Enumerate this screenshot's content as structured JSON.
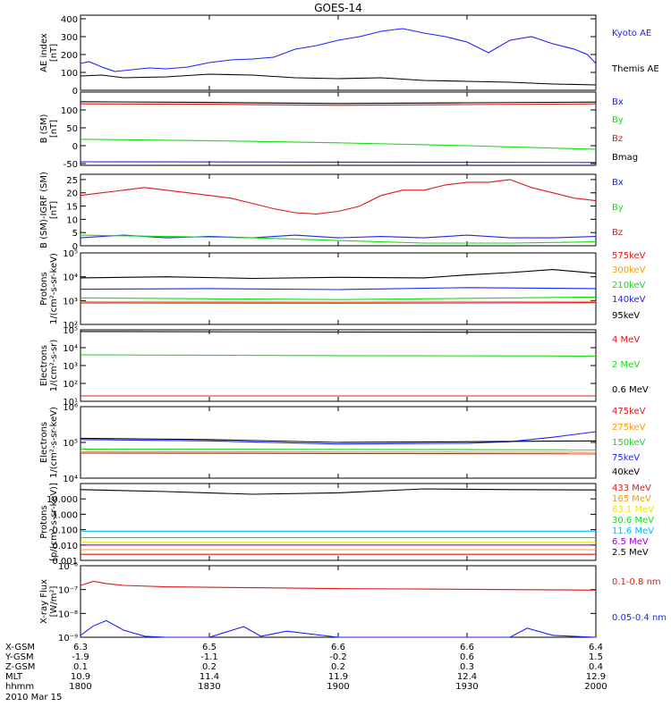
{
  "title": "GOES-14",
  "colors": {
    "black": "#000000",
    "blue": "#1e22ff",
    "green": "#14dc14",
    "red": "#e01818",
    "orange": "#ff9a00",
    "cyan": "#00b8ff",
    "yellow": "#e8e800",
    "purple": "#9a00d0"
  },
  "chart_data": [
    {
      "type": "line",
      "title": "GOES-14",
      "ylabel": [
        "AE index",
        "[nT]"
      ],
      "ylim": [
        0,
        420
      ],
      "yscale": "linear",
      "yticks": [
        0,
        100,
        200,
        300,
        400
      ],
      "yticklabels": [
        "0",
        "100",
        "200",
        "300",
        "400"
      ],
      "series": [
        {
          "name": "Kyoto AE",
          "color": "blue",
          "x": [
            0,
            2,
            5,
            8,
            12,
            16,
            20,
            25,
            30,
            35,
            40,
            45,
            50,
            55,
            60,
            65,
            70,
            75,
            80,
            85,
            90,
            95,
            100,
            105,
            110,
            115,
            118,
            120
          ],
          "y": [
            150,
            160,
            130,
            105,
            115,
            125,
            120,
            130,
            155,
            170,
            175,
            185,
            230,
            250,
            280,
            300,
            330,
            345,
            320,
            300,
            270,
            210,
            280,
            300,
            260,
            230,
            200,
            150
          ]
        },
        {
          "name": "Themis AE",
          "color": "black",
          "x": [
            0,
            5,
            10,
            20,
            30,
            40,
            50,
            60,
            70,
            80,
            90,
            100,
            110,
            120
          ],
          "y": [
            80,
            85,
            70,
            75,
            90,
            85,
            70,
            65,
            70,
            55,
            50,
            45,
            35,
            30
          ]
        }
      ]
    },
    {
      "type": "line",
      "ylabel": [
        "B (SM)",
        "[nT]"
      ],
      "ylim": [
        -55,
        150
      ],
      "yscale": "linear",
      "yticks": [
        -50,
        0,
        50,
        100
      ],
      "yticklabels": [
        "-50",
        "0",
        "50",
        "100"
      ],
      "series": [
        {
          "name": "Bx",
          "color": "blue",
          "x": [
            0,
            60,
            120
          ],
          "y": [
            -45,
            -46,
            -47
          ]
        },
        {
          "name": "By",
          "color": "green",
          "x": [
            0,
            30,
            60,
            90,
            120
          ],
          "y": [
            18,
            14,
            8,
            0,
            -10
          ]
        },
        {
          "name": "Bz",
          "color": "red",
          "x": [
            0,
            30,
            60,
            90,
            120
          ],
          "y": [
            117,
            116,
            113,
            115,
            117
          ]
        },
        {
          "name": "Bmag",
          "color": "black",
          "x": [
            0,
            30,
            60,
            90,
            120
          ],
          "y": [
            123,
            121,
            118,
            120,
            122
          ]
        }
      ]
    },
    {
      "type": "line",
      "ylabel": [
        "B (SM)-IGRF (SM)",
        "[nT]"
      ],
      "ylim": [
        0,
        27
      ],
      "yscale": "linear",
      "yticks": [
        0,
        5,
        10,
        15,
        20,
        25
      ],
      "yticklabels": [
        "0",
        "5",
        "10",
        "15",
        "20",
        "25"
      ],
      "series": [
        {
          "name": "Bx",
          "color": "blue",
          "x": [
            0,
            10,
            20,
            30,
            40,
            50,
            60,
            70,
            80,
            90,
            100,
            110,
            120
          ],
          "y": [
            3,
            4,
            3,
            3.5,
            3,
            4,
            3,
            3.5,
            3,
            4,
            3,
            3,
            3.5
          ]
        },
        {
          "name": "By",
          "color": "green",
          "x": [
            0,
            20,
            40,
            60,
            80,
            100,
            120
          ],
          "y": [
            4,
            3.5,
            3,
            2,
            1,
            1,
            1.5
          ]
        },
        {
          "name": "Bz",
          "color": "red",
          "x": [
            0,
            5,
            10,
            15,
            20,
            25,
            30,
            35,
            40,
            45,
            50,
            55,
            60,
            65,
            70,
            75,
            80,
            85,
            90,
            95,
            100,
            105,
            110,
            115,
            120
          ],
          "y": [
            19,
            20,
            21,
            22,
            21,
            20,
            19,
            18,
            16,
            14,
            12.5,
            12,
            13,
            15,
            19,
            21,
            21,
            23,
            24,
            24,
            25,
            22,
            20,
            18,
            17
          ]
        }
      ]
    },
    {
      "type": "line",
      "ylabel": [
        "Protons",
        "1/(cm²-s-sr-keV)"
      ],
      "ylim": [
        100,
        100000
      ],
      "yscale": "log",
      "yticks": [
        100,
        1000,
        10000,
        100000
      ],
      "yticklabels": [
        "10²",
        "10³",
        "10⁴",
        "10⁵"
      ],
      "series": [
        {
          "name": "575keV",
          "color": "red",
          "x": [
            0,
            60,
            120
          ],
          "y": [
            800,
            780,
            820
          ]
        },
        {
          "name": "300keV",
          "color": "orange",
          "x": [
            0,
            60,
            120
          ],
          "y": [
            900,
            870,
            920
          ]
        },
        {
          "name": "210keV",
          "color": "green",
          "x": [
            0,
            60,
            120
          ],
          "y": [
            1300,
            1100,
            1400
          ]
        },
        {
          "name": "140keV",
          "color": "blue",
          "x": [
            0,
            30,
            60,
            90,
            120
          ],
          "y": [
            3000,
            3200,
            2900,
            3500,
            3200
          ]
        },
        {
          "name": "95keV",
          "color": "black",
          "x": [
            0,
            20,
            40,
            60,
            80,
            90,
            100,
            110,
            120
          ],
          "y": [
            9000,
            10000,
            8500,
            9500,
            9000,
            12000,
            15000,
            20000,
            14000
          ]
        }
      ]
    },
    {
      "type": "line",
      "ylabel": [
        "Electrons",
        "1/(cm²-s-sr)"
      ],
      "ylim": [
        10,
        100000
      ],
      "yscale": "log",
      "yticks": [
        10,
        100,
        1000,
        10000,
        100000
      ],
      "yticklabels": [
        "10¹",
        "10²",
        "10³",
        "10⁴",
        "10⁵"
      ],
      "series": [
        {
          "name": "4 MeV",
          "color": "red",
          "x": [
            0,
            60,
            120
          ],
          "y": [
            20,
            20,
            20
          ]
        },
        {
          "name": "2 MeV",
          "color": "green",
          "x": [
            0,
            60,
            120
          ],
          "y": [
            4000,
            3600,
            3400
          ]
        },
        {
          "name": "0.6 MeV",
          "color": "black",
          "x": [
            0,
            60,
            120
          ],
          "y": [
            80000,
            75000,
            72000
          ]
        }
      ]
    },
    {
      "type": "line",
      "ylabel": [
        "Electrons",
        "1/(cm²-s-sr-keV)"
      ],
      "ylim": [
        10000,
        1000000
      ],
      "yscale": "log",
      "yticks": [
        10000,
        100000,
        1000000
      ],
      "yticklabels": [
        "10⁴",
        "10⁵",
        "10⁶"
      ],
      "series": [
        {
          "name": "475keV",
          "color": "red",
          "x": [
            0,
            120
          ],
          "y": [
            50000,
            48000
          ]
        },
        {
          "name": "275keV",
          "color": "orange",
          "x": [
            0,
            120
          ],
          "y": [
            55000,
            53000
          ]
        },
        {
          "name": "150keV",
          "color": "green",
          "x": [
            0,
            120
          ],
          "y": [
            65000,
            62000
          ]
        },
        {
          "name": "75keV",
          "color": "blue",
          "x": [
            0,
            30,
            60,
            90,
            100,
            110,
            120
          ],
          "y": [
            120000,
            110000,
            90000,
            95000,
            105000,
            140000,
            200000
          ]
        },
        {
          "name": "40keV",
          "color": "black",
          "x": [
            0,
            30,
            60,
            90,
            120
          ],
          "y": [
            130000,
            120000,
            100000,
            105000,
            110000
          ]
        }
      ]
    },
    {
      "type": "line",
      "ylabel": [
        "Protons",
        "[p/(cm²-s-sr-keV)]"
      ],
      "ylim": [
        0.001,
        100
      ],
      "yscale": "log",
      "yticks": [
        0.001,
        0.01,
        0.1,
        1,
        10
      ],
      "yticklabels": [
        "0.001",
        "0.010",
        "0.100",
        "1.000",
        "10.000"
      ],
      "series": [
        {
          "name": "433 MeV",
          "color": "red",
          "x": [
            0,
            60,
            120
          ],
          "y": [
            0.0025,
            0.0025,
            0.0025
          ]
        },
        {
          "name": "165 MeV",
          "color": "orange",
          "x": [
            0,
            60,
            120
          ],
          "y": [
            0.005,
            0.005,
            0.005
          ]
        },
        {
          "name": "63.1 MeV",
          "color": "yellow",
          "x": [
            0,
            60,
            120
          ],
          "y": [
            0.015,
            0.015,
            0.015
          ]
        },
        {
          "name": "30.6 MeV",
          "color": "green",
          "x": [
            0,
            60,
            120
          ],
          "y": [
            0.03,
            0.03,
            0.03
          ]
        },
        {
          "name": "11.6 MeV",
          "color": "cyan",
          "x": [
            0,
            60,
            120
          ],
          "y": [
            0.08,
            0.08,
            0.08
          ]
        },
        {
          "name": "6.5 MeV",
          "color": "purple",
          "x": [
            0,
            60,
            120
          ],
          "y": [
            0.01,
            0.01,
            0.01
          ]
        },
        {
          "name": "2.5 MeV",
          "color": "black",
          "x": [
            0,
            20,
            40,
            60,
            80,
            100,
            120
          ],
          "y": [
            40,
            30,
            20,
            25,
            45,
            40,
            38
          ]
        }
      ]
    },
    {
      "type": "line",
      "ylabel": [
        "X-ray Flux",
        "[W/m²]"
      ],
      "ylim": [
        1e-09,
        1e-06
      ],
      "yscale": "log",
      "yticks": [
        1e-09,
        1e-08,
        1e-07,
        1e-06
      ],
      "yticklabels": [
        "10⁻⁹",
        "10⁻⁸",
        "10⁻⁷",
        "10⁻⁶"
      ],
      "series": [
        {
          "name": "0.1-0.8 nm",
          "color": "red",
          "x": [
            0,
            3,
            6,
            10,
            20,
            40,
            60,
            80,
            100,
            120
          ],
          "y": [
            1.5e-07,
            2.2e-07,
            1.8e-07,
            1.5e-07,
            1.3e-07,
            1.2e-07,
            1.1e-07,
            1.05e-07,
            1e-07,
            9.5e-08
          ]
        },
        {
          "name": "0.05-0.4 nm",
          "color": "blue",
          "x": [
            0,
            3,
            6,
            10,
            15,
            20,
            30,
            38,
            42,
            48,
            60,
            80,
            100,
            104,
            110,
            120
          ],
          "y": [
            1.2e-09,
            3e-09,
            5e-09,
            2e-09,
            1.1e-09,
            1e-09,
            1e-09,
            2.8e-09,
            1.1e-09,
            1.8e-09,
            1e-09,
            1e-09,
            1e-09,
            2.4e-09,
            1.2e-09,
            1e-09
          ]
        }
      ]
    }
  ],
  "x_axis": {
    "row_labels": [
      "X-GSM",
      "Y-GSM",
      "Z-GSM",
      "MLT",
      "hhmm",
      "2010 Mar 15"
    ],
    "ticks": [
      {
        "t": 0,
        "values": [
          "6.3",
          "-1.9",
          "0.1",
          "10.9",
          "1800"
        ]
      },
      {
        "t": 30,
        "values": [
          "6.5",
          "-1.1",
          "0.2",
          "11.4",
          "1830"
        ]
      },
      {
        "t": 60,
        "values": [
          "6.6",
          "-0.2",
          "0.2",
          "11.9",
          "1900"
        ]
      },
      {
        "t": 90,
        "values": [
          "6.6",
          "0.6",
          "0.3",
          "12.4",
          "1930"
        ]
      },
      {
        "t": 120,
        "values": [
          "6.4",
          "1.5",
          "0.4",
          "12.9",
          "2000"
        ]
      }
    ],
    "range": [
      0,
      120
    ]
  }
}
